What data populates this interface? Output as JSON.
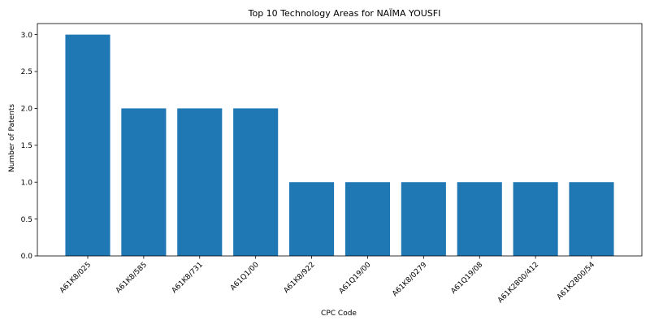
{
  "colors": {
    "bar": "#1f77b4",
    "axis": "#000000",
    "background": "#ffffff"
  },
  "chart_data": {
    "type": "bar",
    "title": "Top 10 Technology Areas for NAÏMA YOUSFI",
    "xlabel": "CPC Code",
    "ylabel": "Number of Patents",
    "categories": [
      "A61K8/025",
      "A61K8/585",
      "A61K8/731",
      "A61Q1/00",
      "A61K8/922",
      "A61Q19/00",
      "A61K8/0279",
      "A61Q19/08",
      "A61K2800/412",
      "A61K2800/54"
    ],
    "values": [
      3,
      2,
      2,
      2,
      1,
      1,
      1,
      1,
      1,
      1
    ],
    "ylim": [
      0,
      3.15
    ],
    "yticks": [
      "0.0",
      "0.5",
      "1.0",
      "1.5",
      "2.0",
      "2.5",
      "3.0"
    ],
    "grid": false,
    "legend": "none"
  }
}
